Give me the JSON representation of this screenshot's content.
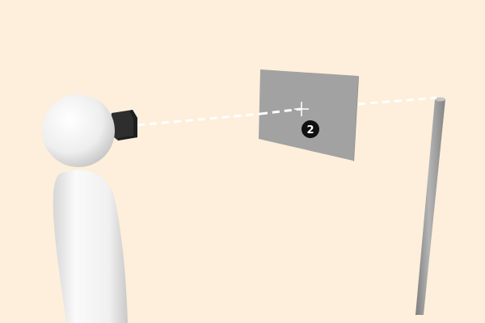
{
  "colors": {
    "background": "#fdefdb",
    "panel": "#a2a2a2",
    "panel_edge": "#8c8c8c",
    "pole": "#9a9a9a",
    "figure_body": "#f2f2f2",
    "headset": "#2e2e2e",
    "sight_line": "#ffffff",
    "badge": "#111111",
    "badge_text": "#ffffff"
  },
  "icons": {
    "person": "person-figure-icon",
    "headset": "vr-headset-icon",
    "target": "crosshair-icon",
    "marker": "numbered-marker-icon"
  },
  "marker": {
    "label": "2"
  }
}
